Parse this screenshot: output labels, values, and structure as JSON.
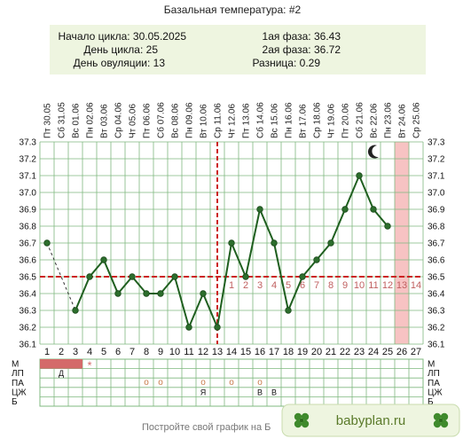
{
  "header": {
    "title": "Базальная температура: #2",
    "cycle_start_label": "Начало цикла: 30.05.2025",
    "cycle_day_label": "День цикла: 25",
    "ovulation_day_label": "День овуляции: 13",
    "phase1_label": "1ая фаза: 36.43",
    "phase2_label": "2ая фаза: 36.72",
    "diff_label": "Разница: 0.29"
  },
  "chart_data": {
    "type": "line",
    "title": "Базальная температура: #2",
    "x_days": [
      1,
      2,
      3,
      4,
      5,
      6,
      7,
      8,
      9,
      10,
      11,
      12,
      13,
      14,
      15,
      16,
      17,
      18,
      19,
      20,
      21,
      22,
      23,
      24,
      25,
      26,
      27
    ],
    "dates": [
      "Пт 30.05",
      "Сб 31.05",
      "Вс 01.06",
      "Пн 02.06",
      "Вт 03.06",
      "Ср 04.06",
      "Чт 05.06",
      "Пт 06.06",
      "Сб 07.06",
      "Вс 08.06",
      "Пн 09.06",
      "Вт 10.06",
      "Ср 11.06",
      "Чт 12.06",
      "Пт 13.06",
      "Сб 14.06",
      "Вс 15.06",
      "Пн 16.06",
      "Вт 17.06",
      "Ср 18.06",
      "Чт 19.06",
      "Пт 20.06",
      "Сб 21.06",
      "Вс 22.06",
      "Пн 23.06",
      "Вт 24.06",
      "Ср 25.06"
    ],
    "series": [
      {
        "values": [
          36.7,
          null,
          36.3,
          36.5,
          36.6,
          36.4,
          36.5,
          36.4,
          36.4,
          36.5,
          36.2,
          36.4,
          36.2,
          36.7,
          36.5,
          36.9,
          36.7,
          36.3,
          36.5,
          36.6,
          36.7,
          36.9,
          37.1,
          36.9,
          36.8,
          null,
          null
        ]
      }
    ],
    "ylim": [
      36.1,
      37.3
    ],
    "yticks": [
      "36.1",
      "36.2",
      "36.3",
      "36.4",
      "36.5",
      "36.6",
      "36.7",
      "36.8",
      "36.9",
      "37.0",
      "37.1",
      "37.2",
      "37.3"
    ],
    "coverline": 36.5,
    "ovulation_day": 13,
    "highlight_day": 26,
    "phase_numbers": [
      "1",
      "2",
      "3",
      "4",
      "5",
      "6",
      "7",
      "8",
      "9",
      "10",
      "11",
      "12",
      "13",
      "14"
    ],
    "phase_start_day": 14,
    "moon_icon": "moon-icon",
    "colors": {
      "line": "#1f5f1f",
      "marker": "#2d6e2d",
      "coverline": "#cc2222",
      "ovulation": "#cc2222",
      "highlight": "#f7c3c3",
      "grid": "#7fb87f",
      "header_bg": "#eef5e0",
      "menses": "#d46a6a"
    }
  },
  "bottom_table": {
    "row_labels": [
      "М",
      "ЛП",
      "ПА",
      "ЦЖ",
      "Б"
    ],
    "menses_days": [
      1,
      2,
      3
    ],
    "menses_star": "*",
    "menses_star_day": 4,
    "lp_marks": [
      {
        "day": 2,
        "text": "Д"
      }
    ],
    "pa_marks": [
      {
        "day": 8,
        "text": "o"
      },
      {
        "day": 9,
        "text": "o"
      },
      {
        "day": 12,
        "text": "o"
      },
      {
        "day": 14,
        "text": "o"
      },
      {
        "day": 16,
        "text": "o"
      }
    ],
    "cm_marks": [
      {
        "day": 12,
        "text": "Я"
      },
      {
        "day": 16,
        "text": "В"
      },
      {
        "day": 17,
        "text": "В"
      }
    ]
  },
  "footer": {
    "text": "Постройте свой график на Б",
    "brand": "babyplan.ru",
    "brand_icon": "clover-icon"
  }
}
